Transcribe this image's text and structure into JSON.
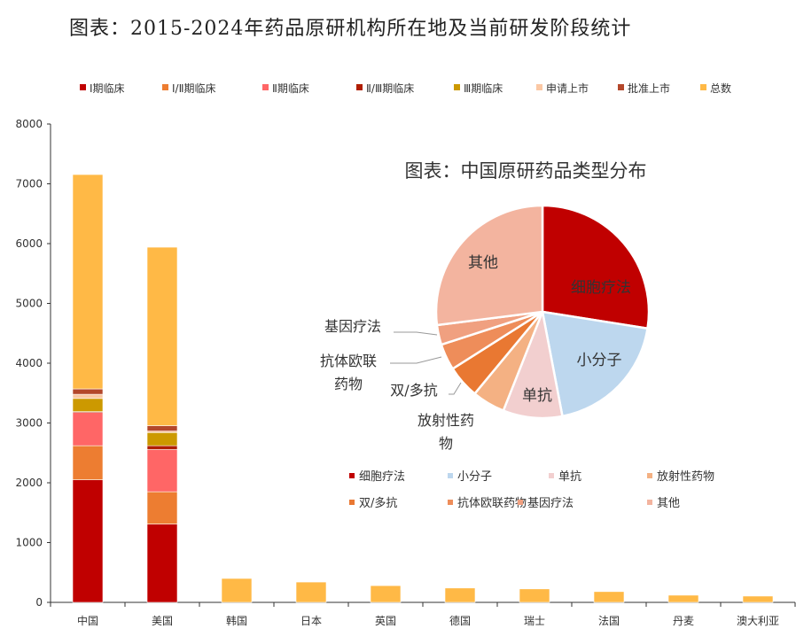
{
  "title": "图表：2015-2024年药品原研机构所在地及当前研发阶段统计",
  "chart_data": [
    {
      "type": "bar",
      "stacked": true,
      "categories": [
        "中国",
        "美国",
        "韩国",
        "日本",
        "英国",
        "德国",
        "瑞士",
        "法国",
        "丹麦",
        "澳大利亚"
      ],
      "series": [
        {
          "name": "Ⅰ期临床",
          "color": "#C00000",
          "values": [
            2050,
            1310,
            0,
            0,
            0,
            0,
            0,
            0,
            0,
            0
          ]
        },
        {
          "name": "Ⅰ/Ⅱ期临床",
          "color": "#ED7D31",
          "values": [
            570,
            540,
            0,
            0,
            0,
            0,
            0,
            0,
            0,
            0
          ]
        },
        {
          "name": "Ⅱ期临床",
          "color": "#FF6666",
          "values": [
            555,
            705,
            0,
            0,
            0,
            0,
            0,
            0,
            0,
            0
          ]
        },
        {
          "name": "Ⅱ/Ⅲ期临床",
          "color": "#B01E00",
          "values": [
            15,
            65,
            0,
            0,
            0,
            0,
            0,
            0,
            0,
            0
          ]
        },
        {
          "name": "Ⅲ期临床",
          "color": "#CC9900",
          "values": [
            220,
            220,
            0,
            0,
            0,
            0,
            0,
            0,
            0,
            0
          ]
        },
        {
          "name": "申请上市",
          "color": "#FBC8A4",
          "values": [
            70,
            25,
            0,
            0,
            0,
            0,
            0,
            0,
            0,
            0
          ]
        },
        {
          "name": "批准上市",
          "color": "#B4472B",
          "values": [
            90,
            90,
            0,
            0,
            0,
            0,
            0,
            0,
            0,
            0
          ]
        },
        {
          "name": "总数",
          "color": "#FFB946",
          "values": [
            3585,
            2985,
            400,
            340,
            280,
            240,
            225,
            180,
            120,
            105
          ]
        }
      ],
      "ylim": [
        0,
        8000
      ],
      "yticks": [
        0,
        1000,
        2000,
        3000,
        4000,
        5000,
        6000,
        7000,
        8000
      ],
      "legend": "top",
      "grid": false
    },
    {
      "type": "pie",
      "title": "图表：中国原研药品类型分布",
      "slices": [
        {
          "label": "细胞疗法",
          "legend": "细胞疗法",
          "value": 27.5,
          "color": "#C00000"
        },
        {
          "label": "小分子",
          "legend": "小分子",
          "value": 19.5,
          "color": "#BDD7EE"
        },
        {
          "label": "单抗",
          "legend": "单抗",
          "value": 9,
          "color": "#F2CFCF"
        },
        {
          "label": "放射性药物",
          "legend": "放射性药物",
          "value": 5,
          "color": "#F4B183"
        },
        {
          "label": "双/多抗",
          "legend": "双/多抗",
          "value": 5,
          "color": "#E97832"
        },
        {
          "label": "抗体欧联药物",
          "legend": "抗体欧联药物",
          "value": 4,
          "color": "#EE8D5A"
        },
        {
          "label": "基因疗法",
          "legend": "基因疗法",
          "value": 3,
          "color": "#F0A080"
        },
        {
          "label": "其他",
          "legend": "其他",
          "value": 27,
          "color": "#F3B49F"
        }
      ],
      "legend": "bottom"
    }
  ]
}
